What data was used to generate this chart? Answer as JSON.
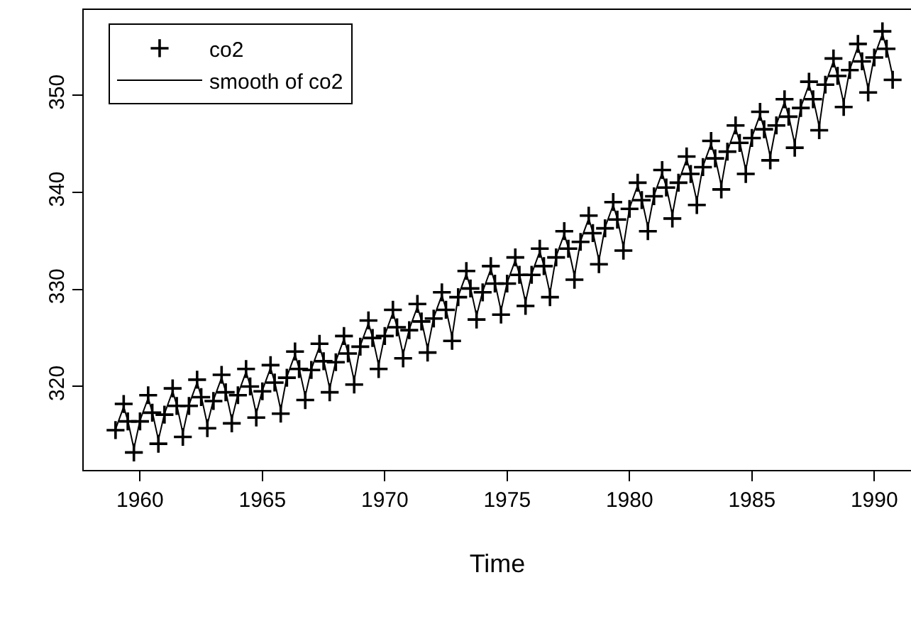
{
  "chart_data": {
    "type": "line",
    "xlabel": "Time",
    "x": [
      1959,
      1959.333,
      1959.5,
      1959.75,
      1960,
      1960.333,
      1960.5,
      1960.75,
      1961,
      1961.333,
      1961.5,
      1961.75,
      1962,
      1962.333,
      1962.5,
      1962.75,
      1963,
      1963.333,
      1963.5,
      1963.75,
      1964,
      1964.333,
      1964.5,
      1964.75,
      1965,
      1965.333,
      1965.5,
      1965.75,
      1966,
      1966.333,
      1966.5,
      1966.75,
      1967,
      1967.333,
      1967.5,
      1967.75,
      1968,
      1968.333,
      1968.5,
      1968.75,
      1969,
      1969.333,
      1969.5,
      1969.75,
      1970,
      1970.333,
      1970.5,
      1970.75,
      1971,
      1971.333,
      1971.5,
      1971.75,
      1972,
      1972.333,
      1972.5,
      1972.75,
      1973,
      1973.333,
      1973.5,
      1973.75,
      1974,
      1974.333,
      1974.5,
      1974.75,
      1975,
      1975.333,
      1975.5,
      1975.75,
      1976,
      1976.333,
      1976.5,
      1976.75,
      1977,
      1977.333,
      1977.5,
      1977.75,
      1978,
      1978.333,
      1978.5,
      1978.75,
      1979,
      1979.333,
      1979.5,
      1979.75,
      1980,
      1980.333,
      1980.5,
      1980.75,
      1981,
      1981.333,
      1981.5,
      1981.75,
      1982,
      1982.333,
      1982.5,
      1982.75,
      1983,
      1983.333,
      1983.5,
      1983.75,
      1984,
      1984.333,
      1984.5,
      1984.75,
      1985,
      1985.333,
      1985.5,
      1985.75,
      1986,
      1986.333,
      1986.5,
      1986.75,
      1987,
      1987.333,
      1987.5,
      1987.75,
      1988,
      1988.333,
      1988.5,
      1988.75,
      1989,
      1989.333,
      1989.5,
      1989.75,
      1990,
      1990.333,
      1990.5,
      1990.75
    ],
    "series": [
      {
        "name": "co2",
        "type": "scatter",
        "marker": "cross",
        "color": "#000000",
        "values": [
          315.5,
          318.2,
          316.4,
          313.2,
          316.4,
          319.1,
          317.3,
          314.1,
          317.1,
          319.8,
          318.0,
          314.8,
          318.0,
          320.7,
          318.9,
          315.7,
          318.5,
          321.2,
          319.4,
          316.2,
          319.1,
          321.8,
          320.0,
          316.8,
          319.5,
          322.2,
          320.4,
          317.2,
          320.9,
          323.6,
          321.8,
          318.6,
          321.7,
          324.4,
          322.6,
          319.4,
          322.5,
          325.2,
          323.4,
          320.2,
          324.1,
          326.8,
          325.0,
          321.8,
          325.2,
          327.9,
          326.1,
          322.9,
          325.8,
          328.5,
          326.7,
          323.5,
          327.0,
          329.7,
          327.9,
          324.7,
          329.2,
          331.9,
          330.1,
          326.9,
          329.7,
          332.4,
          330.6,
          327.4,
          330.6,
          333.3,
          331.5,
          328.3,
          331.5,
          334.2,
          332.4,
          329.2,
          333.3,
          336.0,
          334.2,
          331.0,
          334.9,
          337.6,
          335.8,
          332.6,
          336.3,
          339.0,
          337.2,
          334.0,
          338.3,
          341.0,
          339.2,
          336.0,
          339.6,
          342.3,
          340.5,
          337.3,
          341.0,
          343.7,
          341.9,
          338.7,
          342.6,
          345.3,
          343.5,
          340.3,
          344.2,
          346.9,
          345.1,
          341.9,
          345.6,
          348.3,
          346.5,
          343.3,
          346.9,
          349.6,
          347.8,
          344.6,
          348.7,
          351.4,
          349.6,
          346.4,
          351.1,
          353.8,
          352.0,
          348.8,
          352.6,
          355.3,
          353.5,
          350.3,
          353.9,
          356.6,
          354.8,
          351.6
        ]
      },
      {
        "name": "smooth of co2",
        "line_style": "solid",
        "color": "#000000",
        "values": [
          315.6,
          317.9,
          316.5,
          313.6,
          316.5,
          318.8,
          317.4,
          314.5,
          317.2,
          319.5,
          318.1,
          315.2,
          318.1,
          320.4,
          319.0,
          316.1,
          318.6,
          320.9,
          319.5,
          316.6,
          319.2,
          321.5,
          320.1,
          317.2,
          319.6,
          321.9,
          320.5,
          317.6,
          321.0,
          323.3,
          321.9,
          319.0,
          321.8,
          324.1,
          322.7,
          319.8,
          322.6,
          324.9,
          323.5,
          320.6,
          324.2,
          326.5,
          325.1,
          322.2,
          325.3,
          327.6,
          326.2,
          323.3,
          325.9,
          328.2,
          326.8,
          323.9,
          327.1,
          329.4,
          328.0,
          325.1,
          329.3,
          331.6,
          330.2,
          327.3,
          329.8,
          332.1,
          330.7,
          327.8,
          330.7,
          333.0,
          331.6,
          328.7,
          331.6,
          333.9,
          332.5,
          329.6,
          333.4,
          335.7,
          334.3,
          331.4,
          335.0,
          337.3,
          335.9,
          333.0,
          336.4,
          338.7,
          337.3,
          334.4,
          338.4,
          340.7,
          339.3,
          336.4,
          339.7,
          342.0,
          340.6,
          337.7,
          341.1,
          343.4,
          342.0,
          339.1,
          342.7,
          345.0,
          343.6,
          340.7,
          344.3,
          346.6,
          345.2,
          342.3,
          345.7,
          348.0,
          346.6,
          343.7,
          347.0,
          349.3,
          347.9,
          345.0,
          348.8,
          351.1,
          349.7,
          346.8,
          351.2,
          353.5,
          352.1,
          349.2,
          352.7,
          355.0,
          353.6,
          350.7,
          354.0,
          356.3,
          354.9,
          352.0
        ]
      }
    ],
    "xlim": [
      1957.7,
      1991.5
    ],
    "xticks": [
      1960,
      1965,
      1970,
      1975,
      1980,
      1985,
      1990
    ],
    "ylim": [
      311.4,
      358.8
    ],
    "yticks": [
      320,
      330,
      340,
      350
    ],
    "legend": "top left"
  }
}
